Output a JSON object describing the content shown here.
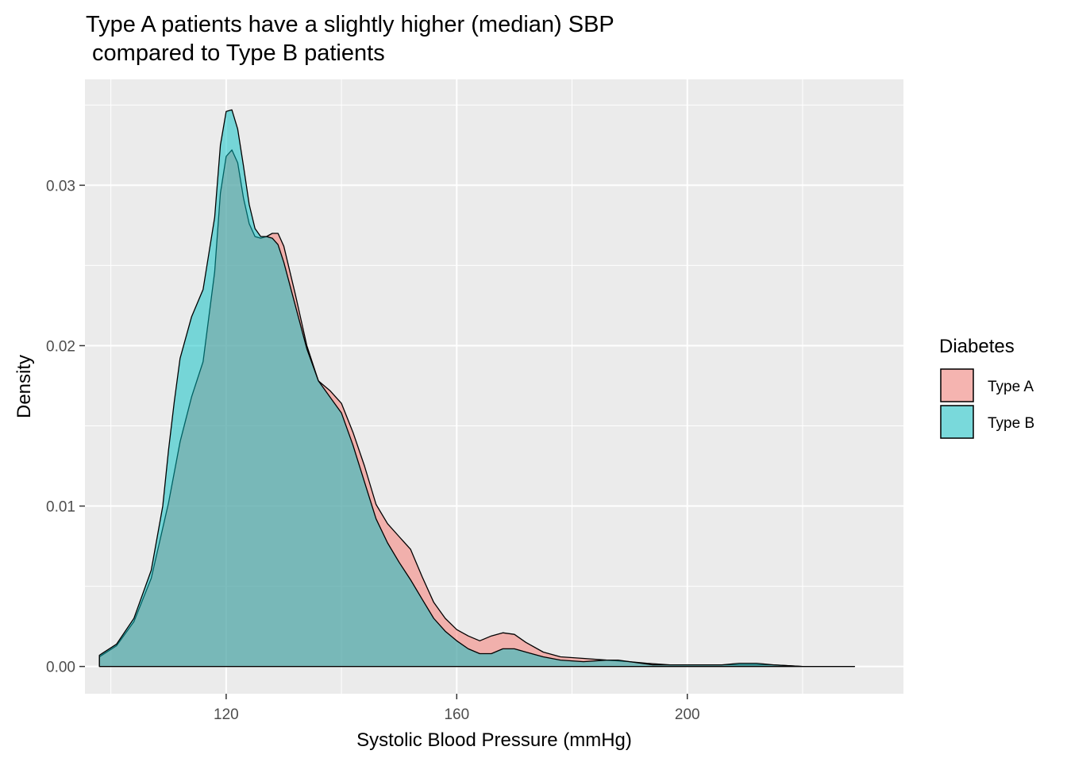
{
  "chart_data": {
    "type": "area",
    "title": "Type A patients have a slightly higher (median) SBP\n compared to Type B patients",
    "xlabel": "Systolic Blood Pressure (mmHg)",
    "ylabel": "Density",
    "xlim": [
      95.5,
      237.5
    ],
    "ylim": [
      -0.0017,
      0.0366
    ],
    "x_ticks": [
      120,
      160,
      200
    ],
    "y_ticks": [
      0.0,
      0.01,
      0.02,
      0.03
    ],
    "x_tick_labels": [
      "120",
      "160",
      "200"
    ],
    "y_tick_labels": [
      "0.00",
      "0.01",
      "0.02",
      "0.03"
    ],
    "grid": true,
    "legend": {
      "title": "Diabetes",
      "position": "right",
      "entries": [
        "Type A",
        "Type B"
      ]
    },
    "series": [
      {
        "name": "Type A",
        "color": "#F8766D",
        "points": [
          [
            98,
            0.0006
          ],
          [
            101,
            0.0013
          ],
          [
            104,
            0.0028
          ],
          [
            107,
            0.0055
          ],
          [
            110,
            0.0102
          ],
          [
            112,
            0.014
          ],
          [
            114,
            0.0168
          ],
          [
            116,
            0.019
          ],
          [
            118,
            0.0246
          ],
          [
            119,
            0.0295
          ],
          [
            120,
            0.0318
          ],
          [
            121,
            0.0322
          ],
          [
            122,
            0.0314
          ],
          [
            123,
            0.0292
          ],
          [
            124,
            0.0276
          ],
          [
            125,
            0.0268
          ],
          [
            126,
            0.0267
          ],
          [
            127,
            0.0268
          ],
          [
            128,
            0.027
          ],
          [
            129,
            0.027
          ],
          [
            130,
            0.0262
          ],
          [
            132,
            0.0232
          ],
          [
            134,
            0.02
          ],
          [
            136,
            0.0178
          ],
          [
            138,
            0.0172
          ],
          [
            140,
            0.0164
          ],
          [
            142,
            0.0146
          ],
          [
            144,
            0.0125
          ],
          [
            146,
            0.0101
          ],
          [
            148,
            0.0089
          ],
          [
            150,
            0.0081
          ],
          [
            152,
            0.0073
          ],
          [
            154,
            0.0056
          ],
          [
            156,
            0.004
          ],
          [
            158,
            0.003
          ],
          [
            160,
            0.0023
          ],
          [
            162,
            0.0019
          ],
          [
            164,
            0.0016
          ],
          [
            166,
            0.0019
          ],
          [
            168,
            0.0021
          ],
          [
            170,
            0.002
          ],
          [
            172,
            0.0015
          ],
          [
            175,
            0.0009
          ],
          [
            178,
            0.0006
          ],
          [
            182,
            0.0005
          ],
          [
            186,
            0.0004
          ],
          [
            190,
            0.0003
          ],
          [
            193,
            0.0002
          ],
          [
            197,
            0.0001
          ],
          [
            200,
            0.0001
          ],
          [
            205,
            0.0001
          ],
          [
            210,
            0.0001
          ],
          [
            215,
            0.0001
          ],
          [
            220,
            0.0
          ],
          [
            225,
            0.0
          ],
          [
            229,
            0.0
          ]
        ]
      },
      {
        "name": "Type B",
        "color": "#00BFC4",
        "points": [
          [
            98,
            0.0007
          ],
          [
            101,
            0.0014
          ],
          [
            104,
            0.003
          ],
          [
            107,
            0.006
          ],
          [
            109,
            0.01
          ],
          [
            110,
            0.0135
          ],
          [
            111,
            0.0165
          ],
          [
            112,
            0.0192
          ],
          [
            114,
            0.0218
          ],
          [
            116,
            0.0235
          ],
          [
            118,
            0.028
          ],
          [
            119,
            0.0325
          ],
          [
            120,
            0.0346
          ],
          [
            121,
            0.0347
          ],
          [
            122,
            0.0335
          ],
          [
            123,
            0.0312
          ],
          [
            124,
            0.0288
          ],
          [
            125,
            0.0273
          ],
          [
            126,
            0.0268
          ],
          [
            127,
            0.0268
          ],
          [
            128,
            0.0267
          ],
          [
            129,
            0.0263
          ],
          [
            130,
            0.0252
          ],
          [
            132,
            0.0225
          ],
          [
            134,
            0.0198
          ],
          [
            136,
            0.0178
          ],
          [
            138,
            0.0168
          ],
          [
            140,
            0.0158
          ],
          [
            142,
            0.0138
          ],
          [
            144,
            0.0115
          ],
          [
            146,
            0.0092
          ],
          [
            148,
            0.0077
          ],
          [
            150,
            0.0065
          ],
          [
            152,
            0.0054
          ],
          [
            154,
            0.0042
          ],
          [
            156,
            0.003
          ],
          [
            158,
            0.0022
          ],
          [
            160,
            0.0016
          ],
          [
            162,
            0.0011
          ],
          [
            164,
            0.0008
          ],
          [
            166,
            0.0008
          ],
          [
            168,
            0.0011
          ],
          [
            170,
            0.0011
          ],
          [
            172,
            0.0009
          ],
          [
            175,
            0.0006
          ],
          [
            178,
            0.0004
          ],
          [
            182,
            0.0003
          ],
          [
            186,
            0.0004
          ],
          [
            188,
            0.0004
          ],
          [
            190,
            0.0003
          ],
          [
            194,
            0.0001
          ],
          [
            198,
            0.0001
          ],
          [
            202,
            0.0001
          ],
          [
            206,
            0.0001
          ],
          [
            209,
            0.0002
          ],
          [
            212,
            0.0002
          ],
          [
            215,
            0.0001
          ],
          [
            220,
            0.0
          ],
          [
            225,
            0.0
          ],
          [
            229,
            0.0
          ]
        ]
      }
    ]
  }
}
